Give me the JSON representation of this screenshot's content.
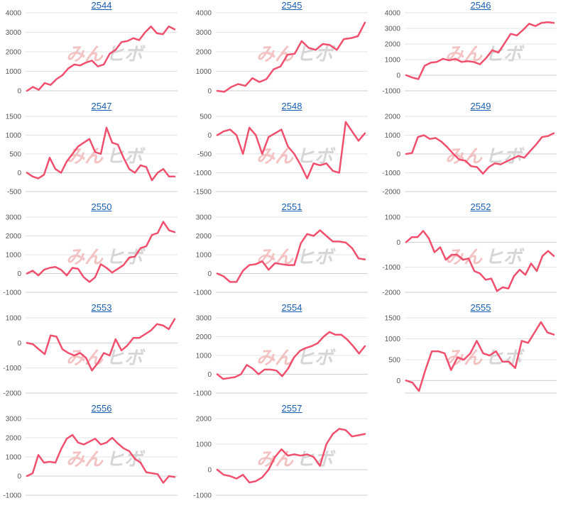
{
  "colors": {
    "series": "#f0506e",
    "link": "#1a5fb4",
    "watermark_left": "#f2b8b8",
    "watermark_right": "#cfcfcf"
  },
  "chart_data": [
    {
      "type": "line",
      "title": "2544",
      "yticks": [
        0,
        1000,
        2000,
        3000,
        4000
      ],
      "ylim": [
        0,
        4000
      ],
      "grid": true,
      "values": [
        0,
        200,
        50,
        400,
        300,
        600,
        800,
        1150,
        1350,
        1300,
        1450,
        1550,
        1250,
        1350,
        1900,
        2100,
        2500,
        2550,
        2700,
        2600,
        3000,
        3300,
        2950,
        2900,
        3300,
        3150
      ]
    },
    {
      "type": "line",
      "title": "2545",
      "yticks": [
        0,
        1000,
        2000,
        3000,
        4000
      ],
      "ylim": [
        0,
        4000
      ],
      "grid": true,
      "values": [
        0,
        -50,
        200,
        350,
        250,
        650,
        450,
        600,
        1100,
        1250,
        1850,
        1900,
        2550,
        2200,
        2100,
        2400,
        2350,
        2100,
        2650,
        2700,
        2800,
        3500
      ]
    },
    {
      "type": "line",
      "title": "2546",
      "yticks": [
        -1000,
        0,
        1000,
        2000,
        3000,
        4000
      ],
      "ylim": [
        -1000,
        4000
      ],
      "grid": true,
      "values": [
        0,
        -150,
        -250,
        600,
        800,
        850,
        1050,
        950,
        1050,
        850,
        900,
        850,
        700,
        1100,
        1600,
        1450,
        2050,
        2650,
        2550,
        2900,
        3300,
        3150,
        3350,
        3400,
        3350
      ]
    },
    {
      "type": "line",
      "title": "2547",
      "yticks": [
        -500,
        0,
        500,
        1000,
        1500
      ],
      "ylim": [
        -500,
        1500
      ],
      "grid": true,
      "values": [
        0,
        -100,
        -150,
        -50,
        400,
        100,
        0,
        300,
        500,
        700,
        800,
        900,
        550,
        500,
        1200,
        800,
        750,
        400,
        100,
        0,
        200,
        150,
        -200,
        0,
        100,
        -100,
        -100
      ]
    },
    {
      "type": "line",
      "title": "2548",
      "yticks": [
        -1500,
        -1000,
        -500,
        0,
        500
      ],
      "ylim": [
        -1500,
        500
      ],
      "grid": true,
      "values": [
        0,
        100,
        150,
        0,
        -500,
        200,
        0,
        -500,
        -50,
        50,
        150,
        -300,
        -500,
        -800,
        -1150,
        -750,
        -800,
        -750,
        -950,
        -1000,
        350,
        100,
        -150,
        50
      ]
    },
    {
      "type": "line",
      "title": "2549",
      "yticks": [
        -2000,
        -1000,
        0,
        1000,
        2000
      ],
      "ylim": [
        -2000,
        2000
      ],
      "grid": true,
      "values": [
        0,
        50,
        900,
        1000,
        800,
        850,
        650,
        350,
        0,
        -300,
        -350,
        -650,
        -700,
        -1050,
        -700,
        -500,
        -550,
        -400,
        -250,
        -100,
        -200,
        150,
        500,
        900,
        950,
        1100
      ]
    },
    {
      "type": "line",
      "title": "2550",
      "yticks": [
        -1000,
        0,
        1000,
        2000,
        3000
      ],
      "ylim": [
        -1000,
        3000
      ],
      "grid": true,
      "values": [
        0,
        150,
        -100,
        200,
        300,
        350,
        200,
        -100,
        300,
        250,
        -200,
        -450,
        -200,
        500,
        300,
        50,
        250,
        450,
        850,
        900,
        1350,
        1450,
        2050,
        2150,
        2750,
        2300,
        2200
      ]
    },
    {
      "type": "line",
      "title": "2551",
      "yticks": [
        -1000,
        0,
        1000,
        2000,
        3000
      ],
      "ylim": [
        -1000,
        3000
      ],
      "grid": true,
      "values": [
        0,
        -150,
        -450,
        -450,
        150,
        450,
        500,
        650,
        200,
        550,
        500,
        450,
        450,
        1600,
        2100,
        2000,
        2300,
        2000,
        1700,
        1700,
        1650,
        1350,
        800,
        750
      ]
    },
    {
      "type": "line",
      "title": "2552",
      "yticks": [
        -2000,
        -1000,
        0,
        1000
      ],
      "ylim": [
        -2000,
        1000
      ],
      "grid": true,
      "values": [
        0,
        200,
        200,
        450,
        150,
        -400,
        -200,
        -700,
        -500,
        -500,
        -700,
        -650,
        -1150,
        -1250,
        -1500,
        -1450,
        -1950,
        -1800,
        -1850,
        -1350,
        -1100,
        -1300,
        -850,
        -1150,
        -550,
        -350,
        -550
      ]
    },
    {
      "type": "line",
      "title": "2553",
      "yticks": [
        -2000,
        -1000,
        0,
        1000
      ],
      "ylim": [
        -2000,
        1000
      ],
      "grid": true,
      "values": [
        0,
        -50,
        -250,
        -450,
        300,
        250,
        -250,
        -400,
        -500,
        -400,
        -600,
        -1100,
        -800,
        -400,
        -500,
        150,
        -300,
        -100,
        200,
        200,
        350,
        500,
        750,
        700,
        550,
        950
      ]
    },
    {
      "type": "line",
      "title": "2554",
      "yticks": [
        -1000,
        0,
        1000,
        2000,
        3000
      ],
      "ylim": [
        -1000,
        3000
      ],
      "grid": true,
      "values": [
        0,
        -250,
        -200,
        -150,
        0,
        500,
        300,
        0,
        250,
        250,
        200,
        -100,
        300,
        900,
        1250,
        1400,
        1500,
        1650,
        2000,
        2250,
        2100,
        2100,
        1850,
        1500,
        1100,
        1500
      ]
    },
    {
      "type": "line",
      "title": "2555",
      "yticks": [
        0,
        500,
        1000,
        1500
      ],
      "ylim": [
        -300,
        1500
      ],
      "grid": true,
      "values": [
        0,
        -50,
        -250,
        250,
        700,
        700,
        650,
        250,
        550,
        500,
        650,
        950,
        650,
        600,
        700,
        450,
        450,
        300,
        950,
        900,
        1150,
        1400,
        1150,
        1100
      ]
    },
    {
      "type": "line",
      "title": "2556",
      "yticks": [
        -1000,
        0,
        1000,
        2000,
        3000
      ],
      "ylim": [
        -1000,
        3000
      ],
      "grid": true,
      "values": [
        0,
        150,
        1100,
        700,
        750,
        700,
        1400,
        1950,
        2150,
        1750,
        1650,
        1800,
        1950,
        1650,
        1750,
        2000,
        1700,
        1450,
        1300,
        900,
        700,
        200,
        150,
        100,
        -350,
        0,
        -50
      ]
    },
    {
      "type": "line",
      "title": "2557",
      "yticks": [
        -1000,
        0,
        1000,
        2000
      ],
      "ylim": [
        -1000,
        2000
      ],
      "grid": true,
      "values": [
        0,
        -200,
        -250,
        -350,
        -200,
        -500,
        -450,
        -300,
        0,
        500,
        800,
        550,
        600,
        550,
        600,
        500,
        150,
        1000,
        1400,
        1600,
        1550,
        1300,
        1350,
        1400
      ]
    }
  ]
}
